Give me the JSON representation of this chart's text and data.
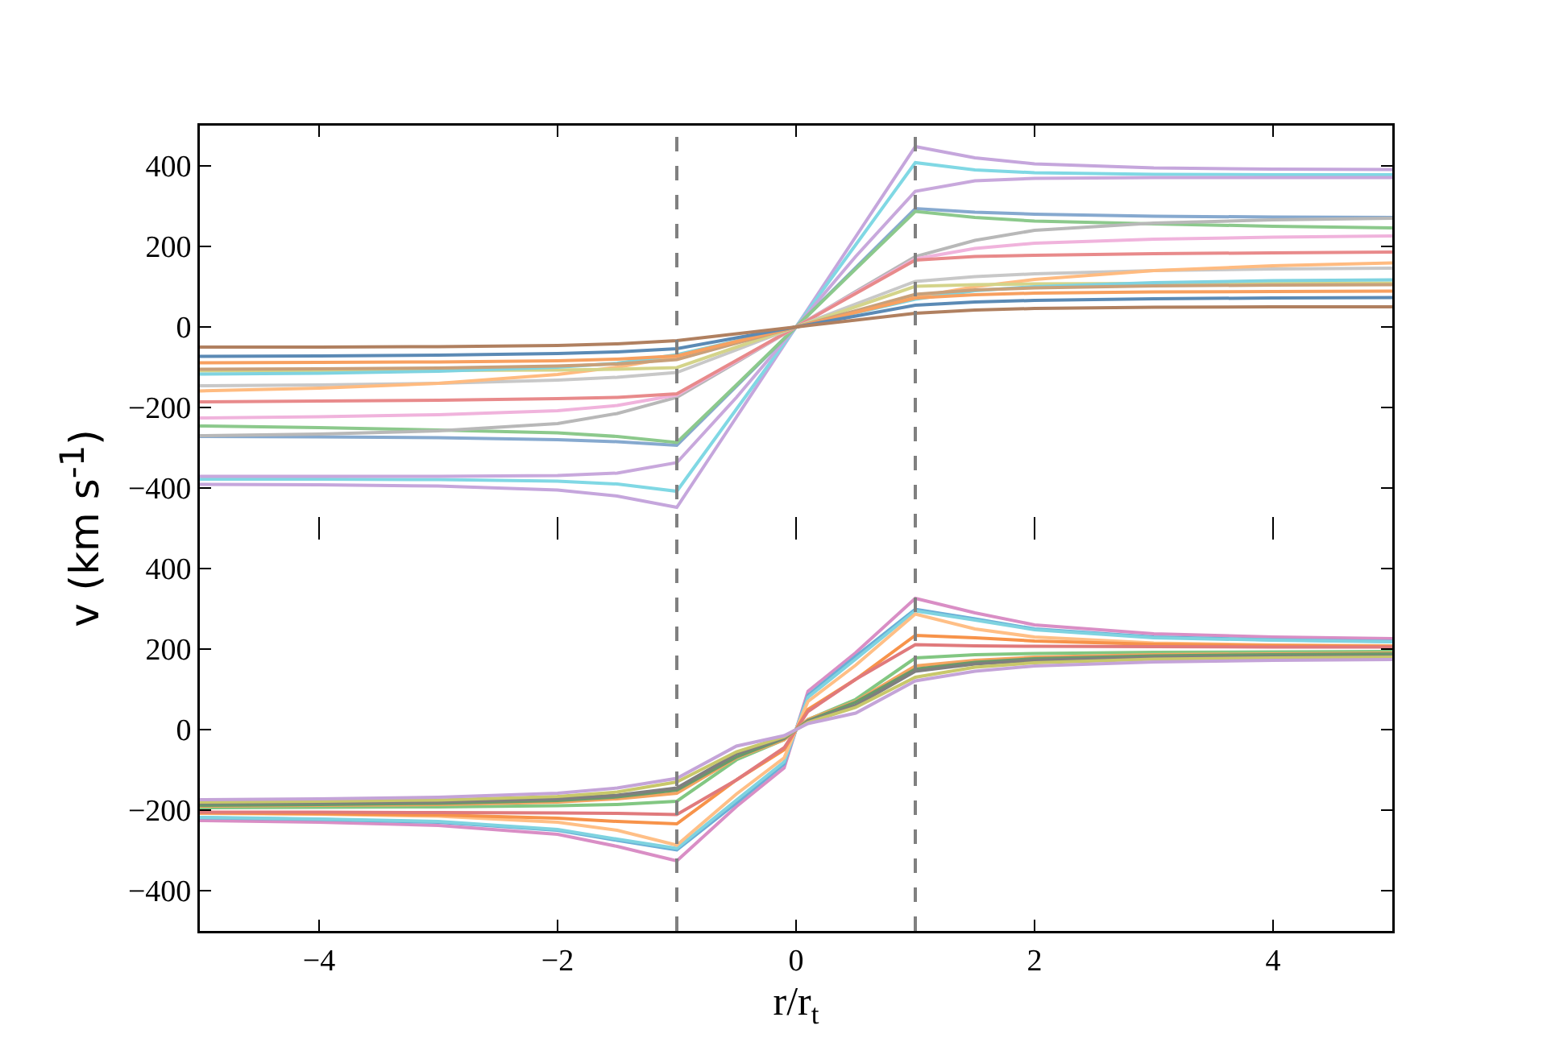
{
  "chart_data": [
    {
      "type": "line",
      "ylabel": "v (km s$^{-1}$)",
      "x": [
        -5,
        -4,
        -3,
        -2,
        -1.5,
        -1,
        -0.5,
        0,
        0.5,
        1,
        1.5,
        2,
        3,
        4,
        5
      ],
      "xlim": [
        -5,
        5
      ],
      "xticks": [
        -4,
        -2,
        0,
        2,
        4
      ],
      "ylim": [
        -500,
        500
      ],
      "yticks": [
        -400,
        -200,
        0,
        200,
        400
      ],
      "tick_labels": "y",
      "grid": false,
      "line_style": "solid",
      "ref_lines": [
        {
          "axis": "x",
          "value": -1,
          "color": "#808080",
          "line_style": "dashed"
        },
        {
          "axis": "x",
          "value": 1,
          "color": "#808080",
          "line_style": "dashed"
        }
      ],
      "series": [
        {
          "color": "#c5a6dc",
          "values": [
            -391,
            -392,
            -395,
            -405,
            -420,
            -448,
            -224,
            0,
            224,
            448,
            420,
            405,
            395,
            392,
            391
          ]
        },
        {
          "color": "#80d8e4",
          "values": [
            -378,
            -378,
            -379,
            -383,
            -390,
            -408,
            -204,
            0,
            204,
            408,
            390,
            383,
            379,
            378,
            378
          ]
        },
        {
          "color": "#c8a8dc",
          "values": [
            -371,
            -371,
            -371,
            -369,
            -363,
            -337,
            -175,
            0,
            175,
            337,
            363,
            369,
            371,
            371,
            371
          ]
        },
        {
          "color": "#86a9cf",
          "values": [
            -272,
            -273,
            -275,
            -280,
            -285,
            -294,
            -147,
            0,
            147,
            294,
            285,
            280,
            275,
            273,
            272
          ]
        },
        {
          "color": "#8cc98c",
          "values": [
            -246,
            -250,
            -256,
            -263,
            -272,
            -287,
            -144,
            0,
            144,
            287,
            272,
            263,
            256,
            250,
            246
          ]
        },
        {
          "color": "#b8b8b8",
          "values": [
            -270,
            -266,
            -258,
            -240,
            -215,
            -175,
            -88,
            0,
            88,
            175,
            215,
            240,
            258,
            266,
            270
          ]
        },
        {
          "color": "#f0b3dc",
          "values": [
            -226,
            -223,
            -218,
            -208,
            -195,
            -169,
            -85,
            0,
            85,
            169,
            195,
            208,
            218,
            223,
            226
          ]
        },
        {
          "color": "#e88a8b",
          "values": [
            -186,
            -184,
            -182,
            -178,
            -175,
            -166,
            -83,
            0,
            83,
            166,
            175,
            178,
            182,
            184,
            186
          ]
        },
        {
          "color": "#c8c8c8",
          "values": [
            -146,
            -144,
            -140,
            -132,
            -125,
            -113,
            -57,
            0,
            57,
            113,
            125,
            132,
            140,
            144,
            146
          ]
        },
        {
          "color": "#ffbb80",
          "values": [
            -159,
            -152,
            -140,
            -118,
            -100,
            -74,
            -37,
            0,
            37,
            74,
            100,
            118,
            140,
            152,
            159
          ]
        },
        {
          "color": "#d4d48a",
          "values": [
            -109,
            -109,
            -108,
            -107,
            -105,
            -101,
            -50,
            0,
            50,
            101,
            105,
            107,
            108,
            109,
            109
          ]
        },
        {
          "color": "#7fd3e0",
          "values": [
            -117,
            -115,
            -110,
            -100,
            -90,
            -69,
            -35,
            0,
            35,
            69,
            90,
            100,
            110,
            115,
            117
          ]
        },
        {
          "color": "#c8a07a",
          "values": [
            -105,
            -104,
            -102,
            -97,
            -92,
            -81,
            -40,
            0,
            40,
            81,
            92,
            97,
            102,
            104,
            105
          ]
        },
        {
          "color": "#f7a060",
          "values": [
            -89,
            -88,
            -87,
            -84,
            -80,
            -72,
            -36,
            0,
            36,
            72,
            80,
            84,
            87,
            88,
            89
          ]
        },
        {
          "color": "#5b8ab5",
          "values": [
            -73,
            -72,
            -70,
            -66,
            -62,
            -54,
            -27,
            0,
            27,
            54,
            62,
            66,
            70,
            72,
            73
          ]
        },
        {
          "color": "#b08060",
          "values": [
            -50,
            -50,
            -49,
            -46,
            -42,
            -34,
            -17,
            0,
            17,
            34,
            42,
            46,
            49,
            50,
            50
          ]
        }
      ]
    },
    {
      "type": "line",
      "xlabel": "r/r$_{t}$",
      "x": [
        -5,
        -4,
        -3,
        -2,
        -1.5,
        -1,
        -0.5,
        -0.1,
        0,
        0.1,
        0.5,
        1,
        1.5,
        2,
        3,
        4,
        5
      ],
      "xlim": [
        -5,
        5
      ],
      "xticks": [
        -4,
        -2,
        0,
        2,
        4
      ],
      "ylim": [
        -500,
        500
      ],
      "yticks": [
        -400,
        -200,
        0,
        200,
        400
      ],
      "grid": false,
      "line_style": "solid",
      "ref_lines": [
        {
          "axis": "x",
          "value": -1,
          "color": "#808080",
          "line_style": "dashed"
        },
        {
          "axis": "x",
          "value": 1,
          "color": "#808080",
          "line_style": "dashed"
        }
      ],
      "series": [
        {
          "color": "#d98ec5",
          "values": [
            -226,
            -230,
            -238,
            -260,
            -290,
            -326,
            -191,
            -95,
            0,
            95,
            191,
            326,
            290,
            260,
            238,
            230,
            226
          ]
        },
        {
          "color": "#6aaed6",
          "values": [
            -219,
            -223,
            -230,
            -250,
            -275,
            -299,
            -182,
            -85,
            0,
            85,
            182,
            299,
            275,
            250,
            230,
            223,
            219
          ]
        },
        {
          "color": "#7fd3e0",
          "values": [
            -218,
            -222,
            -228,
            -248,
            -272,
            -295,
            -175,
            -80,
            0,
            80,
            175,
            295,
            272,
            248,
            228,
            222,
            218
          ]
        },
        {
          "color": "#ffbf86",
          "values": [
            -208,
            -210,
            -215,
            -230,
            -250,
            -287,
            -160,
            -70,
            0,
            70,
            160,
            287,
            250,
            230,
            215,
            210,
            208
          ]
        },
        {
          "color": "#f7934a",
          "values": [
            -207,
            -209,
            -212,
            -220,
            -228,
            -234,
            -125,
            -50,
            0,
            50,
            125,
            234,
            228,
            220,
            212,
            209,
            207
          ]
        },
        {
          "color": "#e07a7c",
          "values": [
            -205,
            -205,
            -206,
            -207,
            -208,
            -211,
            -125,
            -45,
            0,
            45,
            125,
            211,
            208,
            207,
            206,
            205,
            205
          ]
        },
        {
          "color": "#82c782",
          "values": [
            -194,
            -193,
            -192,
            -189,
            -186,
            -178,
            -75,
            -25,
            0,
            25,
            75,
            178,
            186,
            189,
            192,
            193,
            194
          ]
        },
        {
          "color": "#f4a460",
          "values": [
            -190,
            -188,
            -186,
            -180,
            -172,
            -158,
            -70,
            -25,
            0,
            25,
            70,
            158,
            172,
            180,
            186,
            188,
            190
          ]
        },
        {
          "color": "#6a9a6a",
          "values": [
            -188,
            -186,
            -183,
            -176,
            -167,
            -150,
            -68,
            -22,
            0,
            22,
            68,
            150,
            167,
            176,
            183,
            186,
            188
          ]
        },
        {
          "color": "#7f7f7f",
          "values": [
            -182,
            -181,
            -179,
            -172,
            -163,
            -145,
            -60,
            -20,
            0,
            20,
            60,
            145,
            163,
            172,
            179,
            181,
            182
          ]
        },
        {
          "color": "#c8c86a",
          "values": [
            -180,
            -178,
            -175,
            -166,
            -155,
            -130,
            -55,
            -18,
            0,
            18,
            55,
            130,
            155,
            166,
            175,
            178,
            180
          ]
        },
        {
          "color": "#c4a4d8",
          "values": [
            -174,
            -172,
            -168,
            -158,
            -145,
            -121,
            -41,
            -15,
            0,
            15,
            41,
            121,
            145,
            158,
            168,
            172,
            174
          ]
        }
      ]
    }
  ]
}
